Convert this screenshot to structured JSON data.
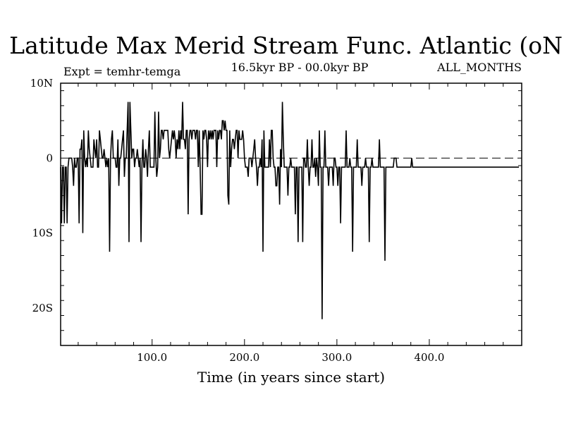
{
  "chart_data": {
    "type": "line",
    "title": "Latitude Max Merid Stream Func. Atlantic (oN)",
    "subtitle_left": "Expt = temhr-temga",
    "subtitle_center": "16.5kyr BP - 00.0kyr BP",
    "subtitle_right": "ALL_MONTHS",
    "xlabel": "Time (in years since start)",
    "ylabel": "",
    "xlim": [
      1,
      500
    ],
    "ylim": [
      -25,
      10
    ],
    "x_ticks": [
      {
        "value": 100,
        "label": "100.0"
      },
      {
        "value": 200,
        "label": "200.0"
      },
      {
        "value": 300,
        "label": "300.0"
      },
      {
        "value": 400,
        "label": "400.0"
      }
    ],
    "y_ticks": [
      {
        "value": 10,
        "label": "10N"
      },
      {
        "value": 0,
        "label": "0"
      },
      {
        "value": -10,
        "label": "10S"
      },
      {
        "value": -20,
        "label": "20S"
      }
    ],
    "reference_line": 0,
    "series": [
      {
        "name": "latitude",
        "x_start": 1,
        "x_step": 1,
        "values": [
          -1.2,
          -8.7,
          -1.2,
          -1.2,
          -8.7,
          -1.2,
          -1.2,
          -8.7,
          -1.2,
          0,
          0,
          0,
          0,
          -1.2,
          -3.7,
          0,
          -1.2,
          -1.2,
          0,
          0,
          -8.7,
          1.2,
          1.2,
          2.5,
          -10,
          3.7,
          0,
          -1.2,
          0,
          -1.2,
          3.7,
          1.2,
          0,
          -1.2,
          -1.2,
          -1.2,
          2.5,
          1.2,
          0,
          2.5,
          -1.2,
          -1.2,
          3.7,
          2.5,
          1.2,
          0,
          0,
          1.2,
          0,
          -1.2,
          0,
          -1.2,
          0,
          -12.5,
          0,
          2.5,
          3.7,
          0,
          0,
          0,
          -1.2,
          -1.2,
          2.5,
          -3.7,
          0,
          0,
          1.2,
          2.5,
          3.7,
          -2.5,
          0,
          0,
          3.7,
          7.5,
          -11.2,
          7.5,
          3.7,
          0,
          1.2,
          1.2,
          -1.2,
          0,
          0,
          1.2,
          0,
          -1.2,
          0,
          -11.2,
          -1.2,
          2.5,
          -1.2,
          -1.2,
          1.2,
          0,
          -2.5,
          1.2,
          3.7,
          -1.2,
          -1.2,
          -1.2,
          -1.2,
          -1.2,
          6.2,
          0,
          -2.5,
          -1.2,
          6.2,
          0,
          1.2,
          3.7,
          3.7,
          2.5,
          3.7,
          3.7,
          3.7,
          3.7,
          3.7,
          1.2,
          0,
          1.2,
          2.5,
          3.7,
          2.5,
          3.7,
          2.5,
          0,
          2.5,
          1.2,
          3.7,
          1.2,
          3.7,
          2.5,
          7.5,
          2.5,
          2.5,
          1.2,
          3.7,
          3.7,
          -7.5,
          2.5,
          3.7,
          3.7,
          2.5,
          3.7,
          3.7,
          3.7,
          2.5,
          3.7,
          3.7,
          -1.2,
          3.7,
          -1.2,
          -7.5,
          -7.5,
          3.7,
          2.5,
          3.7,
          3.7,
          2.5,
          -1.2,
          3.7,
          2.5,
          3.7,
          2.5,
          3.7,
          2.5,
          3.7,
          3.7,
          3.7,
          -1.2,
          3.7,
          2.5,
          3.7,
          3.7,
          2.5,
          5,
          5,
          3.7,
          5,
          3.7,
          3.7,
          -5,
          -6.2,
          3.7,
          -1.2,
          1.2,
          2.5,
          2.5,
          1.2,
          2.5,
          3.7,
          3.7,
          0,
          3.7,
          2.5,
          2.5,
          2.5,
          3.7,
          2.5,
          0,
          -1.2,
          -1.2,
          -1.2,
          -2.5,
          0,
          0,
          0,
          -1.2,
          0,
          1.2,
          2.5,
          0,
          -1.2,
          -3.7,
          -1.2,
          -1.2,
          0,
          -1.2,
          2.5,
          -12.5,
          3.7,
          -1.2,
          -1.2,
          -1.2,
          -1.2,
          -1.2,
          2.5,
          -1.2,
          3.7,
          3.7,
          0,
          -1.2,
          -1.2,
          -3.7,
          -3.7,
          -1.2,
          -1.2,
          -6.2,
          1.2,
          -1.2,
          7.5,
          2.5,
          -1.2,
          -1.2,
          -1.2,
          -1.2,
          -5,
          -1.2,
          -1.2,
          0,
          -1.2,
          -1.2,
          -1.2,
          -1.2,
          -7.5,
          -1.2,
          -1.2,
          -11.2,
          -1.2,
          -1.2,
          -1.2,
          -1.2,
          -11.2,
          0,
          0,
          -1.2,
          -1.2,
          2.5,
          -1.2,
          -3.7,
          -1.2,
          -1.2,
          2.5,
          -1.2,
          -1.2,
          0,
          -2.5,
          0,
          -1.2,
          -3.7,
          3.7,
          -1.2,
          -1.2,
          -21.5,
          -1.2,
          -1.2,
          3.7,
          -1.2,
          -1.2,
          -1.2,
          -3.7,
          -1.2,
          -1.2,
          -1.2,
          -1.2,
          -3.7,
          0,
          0,
          -1.2,
          -1.2,
          -3.7,
          -1.2,
          -1.2,
          -8.7,
          -1.2,
          -1.2,
          -1.2,
          -1.2,
          -1.2,
          3.7,
          -1.2,
          -1.2,
          -1.2,
          0,
          -1.2,
          -1.2,
          -12.5,
          -1.2,
          -1.2,
          -1.2,
          -1.2,
          2.5,
          -1.2,
          -1.2,
          -1.2,
          -1.2,
          -3.7,
          -1.2,
          -1.2,
          -1.2,
          0,
          -1.2,
          -1.2,
          -1.2,
          -11.2,
          -1.2,
          -1.2,
          0,
          -1.2,
          -1.2,
          -1.2,
          -1.2,
          -1.2,
          -1.2,
          -1.2,
          2.5,
          -1.2,
          -1.2,
          -1.2,
          -1.2,
          -1.2,
          -13.7,
          -1.2,
          -1.2,
          -1.2,
          -1.2,
          -1.2,
          -1.2,
          -1.2,
          -1.2,
          -1.2,
          0,
          0,
          0,
          -1.2,
          -1.2,
          -1.2,
          -1.2,
          -1.2,
          -1.2,
          -1.2,
          -1.2,
          -1.2,
          -1.2,
          -1.2,
          -1.2,
          -1.2,
          -1.2,
          -1.2,
          -1.2,
          0,
          -1.2,
          -1.2,
          -1.2,
          -1.2,
          -1.2,
          -1.2,
          -1.2,
          -1.2,
          -1.2,
          -1.2,
          -1.2,
          -1.2,
          -1.2,
          -1.2,
          -1.2,
          -1.2,
          -1.2,
          -1.2,
          -1.2,
          -1.2,
          -1.2,
          -1.2,
          -1.2,
          -1.2,
          -1.2,
          -1.2,
          -1.2,
          -1.2,
          -1.2,
          -1.2,
          -1.2,
          -1.2,
          -1.2,
          -1.2,
          -1.2,
          -1.2,
          -1.2,
          -1.2,
          -1.2,
          -1.2,
          -1.2,
          -1.2,
          -1.2,
          -1.2,
          -1.2,
          -1.2,
          -1.2,
          -1.2,
          -1.2,
          -1.2,
          -1.2,
          -1.2,
          -1.2,
          -1.2,
          -1.2,
          -1.2,
          -1.2,
          -1.2,
          -1.2,
          -1.2,
          -1.2,
          -1.2,
          -1.2,
          -1.2,
          -1.2,
          -1.2,
          -1.2,
          -1.2,
          -1.2,
          -1.2,
          -1.2,
          -1.2,
          -1.2,
          -1.2,
          -1.2,
          -1.2,
          -1.2,
          -1.2,
          -1.2,
          -1.2,
          -1.2,
          -1.2,
          -1.2,
          -1.2,
          -1.2,
          -1.2,
          -1.2,
          -1.2,
          -1.2,
          -1.2,
          -1.2,
          -1.2,
          -1.2,
          -1.2,
          -1.2,
          -1.2,
          -1.2,
          -1.2,
          -1.2,
          -1.2,
          -1.2,
          -1.2,
          -1.2,
          -1.2,
          -1.2,
          -1.2,
          -1.2,
          -1.2,
          -1.2,
          -1.2,
          -1.2,
          -1.2,
          -1.2,
          -1.2,
          -1.2,
          -1.2
        ]
      }
    ]
  },
  "colors": {
    "line": "#000000",
    "background": "#ffffff"
  }
}
